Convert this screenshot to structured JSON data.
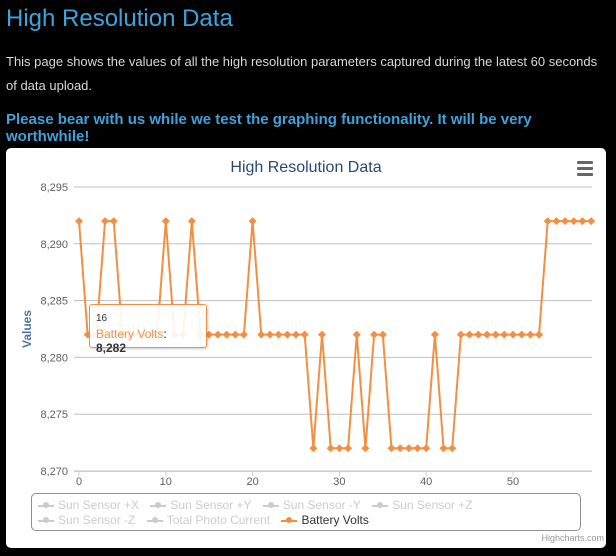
{
  "page": {
    "title": "High Resolution Data",
    "intro": "This page shows the values of all the high resolution parameters captured during the latest 60 seconds of data upload.",
    "notice": "Please bear with us while we test the graphing functionality. It will be very worthwhile!"
  },
  "chart_data": {
    "type": "line",
    "title": "High Resolution Data",
    "ylabel": "Values",
    "xlabel": "",
    "ylim": [
      8270,
      8295
    ],
    "yticks": [
      "8,270",
      "8,275",
      "8,280",
      "8,285",
      "8,290",
      "8,295"
    ],
    "ytick_values": [
      8270,
      8275,
      8280,
      8285,
      8290,
      8295
    ],
    "xlim": [
      0,
      59
    ],
    "xticks": [
      "0",
      "10",
      "20",
      "30",
      "40",
      "50"
    ],
    "xtick_values": [
      0,
      10,
      20,
      30,
      40,
      50
    ],
    "grid": true,
    "legend_placement": "bottom",
    "series": [
      {
        "name": "Sun Sensor +X",
        "visible": false,
        "values": []
      },
      {
        "name": "Sun Sensor +Y",
        "visible": false,
        "values": []
      },
      {
        "name": "Sun Sensor -Y",
        "visible": false,
        "values": []
      },
      {
        "name": "Sun Sensor +Z",
        "visible": false,
        "values": []
      },
      {
        "name": "Sun Sensor -Z",
        "visible": false,
        "values": []
      },
      {
        "name": "Total Photo Current",
        "visible": false,
        "values": []
      },
      {
        "name": "Battery Volts",
        "visible": true,
        "color": "#f28f43",
        "values": [
          8292,
          8282,
          8282,
          8292,
          8292,
          8282,
          8282,
          8282,
          8282,
          8282,
          8292,
          8282,
          8282,
          8292,
          8282,
          8282,
          8282,
          8282,
          8282,
          8282,
          8292,
          8282,
          8282,
          8282,
          8282,
          8282,
          8282,
          8272,
          8282,
          8272,
          8272,
          8272,
          8282,
          8272,
          8282,
          8282,
          8272,
          8272,
          8272,
          8272,
          8272,
          8282,
          8272,
          8272,
          8282,
          8282,
          8282,
          8282,
          8282,
          8282,
          8282,
          8282,
          8282,
          8282,
          8292,
          8292,
          8292,
          8292,
          8292,
          8292
        ]
      }
    ],
    "tooltip": {
      "x": "16",
      "series": "Battery Volts",
      "value": "8,282"
    },
    "credit": "Highcharts.com",
    "menu_icon": "hamburger-menu-icon"
  }
}
